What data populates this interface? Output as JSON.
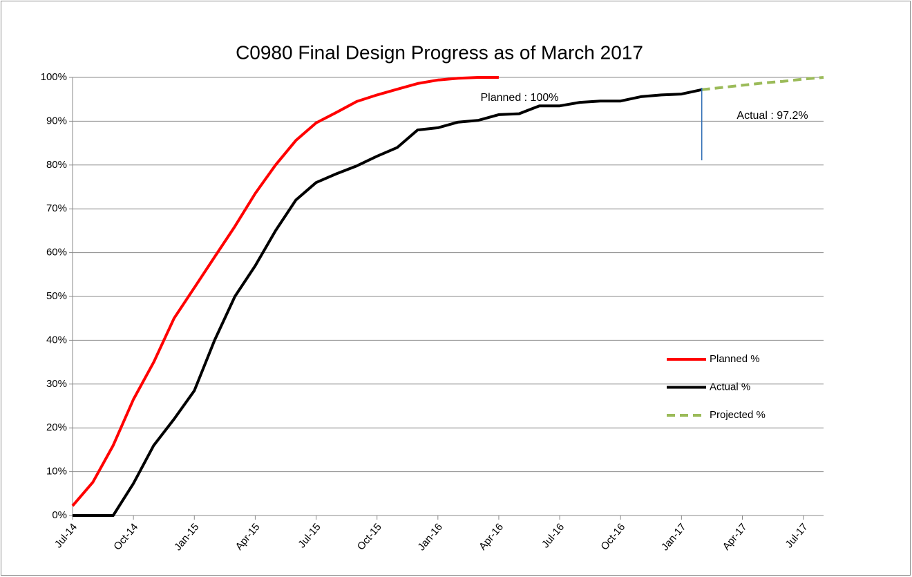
{
  "chart_data": {
    "type": "line",
    "title": "C0980 Final Design Progress as of March 2017",
    "categories": [
      "Jul-14",
      null,
      null,
      "Oct-14",
      null,
      null,
      "Jan-15",
      null,
      null,
      "Apr-15",
      null,
      null,
      "Jul-15",
      null,
      null,
      "Oct-15",
      null,
      null,
      "Jan-16",
      null,
      null,
      "Apr-16",
      null,
      null,
      "Jul-16",
      null,
      null,
      "Oct-16",
      null,
      null,
      "Jan-17",
      null,
      null,
      "Apr-17",
      null,
      null,
      "Jul-17",
      null
    ],
    "series": [
      {
        "name": "Planned %",
        "color": "#ff0000",
        "dash": false,
        "values": [
          2.2,
          7.6,
          16,
          26.5,
          35,
          45,
          52,
          59,
          66,
          73.5,
          80,
          85.6,
          89.6,
          92,
          94.5,
          96,
          97.3,
          98.6,
          99.4,
          99.8,
          100,
          100,
          null,
          null,
          null,
          null,
          null,
          null,
          null,
          null,
          null,
          null,
          null,
          null,
          null,
          null,
          null,
          null
        ]
      },
      {
        "name": "Actual %",
        "color": "#000000",
        "dash": false,
        "values": [
          0,
          0,
          0,
          7.3,
          16,
          22,
          28.5,
          40,
          50,
          57,
          65,
          72,
          76,
          78,
          79.8,
          82,
          84,
          88,
          88.5,
          89.8,
          90.2,
          91.5,
          91.7,
          93.5,
          93.5,
          94.3,
          94.6,
          94.6,
          95.6,
          96,
          96.2,
          97.2,
          null,
          null,
          null,
          null,
          null,
          null
        ]
      },
      {
        "name": "Projected %",
        "color": "#9bbb59",
        "dash": true,
        "values": [
          null,
          null,
          null,
          null,
          null,
          null,
          null,
          null,
          null,
          null,
          null,
          null,
          null,
          null,
          null,
          null,
          null,
          null,
          null,
          null,
          null,
          null,
          null,
          null,
          null,
          null,
          null,
          null,
          null,
          null,
          null,
          97.2,
          97.7,
          98.2,
          98.7,
          99.1,
          99.6,
          100
        ]
      }
    ],
    "ylim": [
      0,
      100
    ],
    "yticks": [
      {
        "value": 0,
        "label": "0%"
      },
      {
        "value": 10,
        "label": "10%"
      },
      {
        "value": 20,
        "label": "20%"
      },
      {
        "value": 30,
        "label": "30%"
      },
      {
        "value": 40,
        "label": "40%"
      },
      {
        "value": 50,
        "label": "50%"
      },
      {
        "value": 60,
        "label": "60%"
      },
      {
        "value": 70,
        "label": "70%"
      },
      {
        "value": 80,
        "label": "80%"
      },
      {
        "value": 90,
        "label": "90%"
      },
      {
        "value": 100,
        "label": "100%"
      }
    ],
    "grid": true,
    "legend": "right",
    "annotations": [
      "Planned : 100%",
      "Actual : 97.2%"
    ]
  }
}
